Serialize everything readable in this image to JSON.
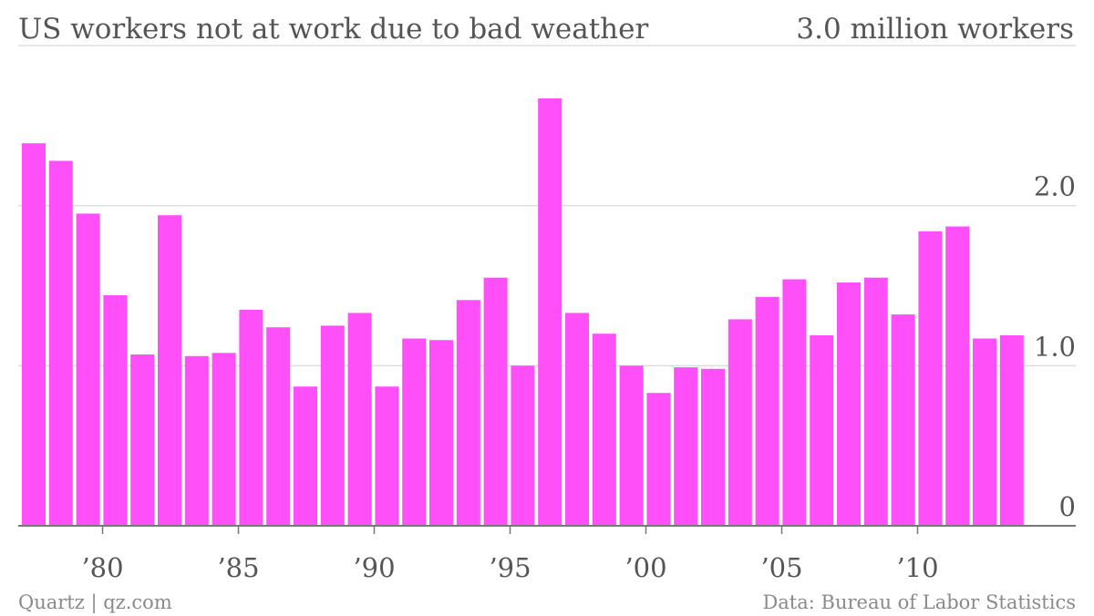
{
  "header": {
    "title": "US workers not at work due to bad weather",
    "unit_label": "3.0 million workers"
  },
  "footer": {
    "credit": "Quartz | qz.com",
    "source": "Data: Bureau of Labor Statistics"
  },
  "colors": {
    "bar": "#ff4ff8",
    "grid": "#dddddd",
    "baseline": "#777777"
  },
  "chart_data": {
    "type": "bar",
    "title": "US workers not at work due to bad weather",
    "unit": "million workers",
    "ylim": [
      0,
      3.0
    ],
    "y_ticks": [
      {
        "value": 0,
        "label": "0"
      },
      {
        "value": 1.0,
        "label": "1.0"
      },
      {
        "value": 2.0,
        "label": "2.0"
      },
      {
        "value": 3.0,
        "label": "3.0 million workers"
      }
    ],
    "x_ticks": [
      {
        "year": 1980,
        "label": "’80"
      },
      {
        "year": 1985,
        "label": "’85"
      },
      {
        "year": 1990,
        "label": "’90"
      },
      {
        "year": 1995,
        "label": "’95"
      },
      {
        "year": 2000,
        "label": "’00"
      },
      {
        "year": 2005,
        "label": "’05"
      },
      {
        "year": 2010,
        "label": "’10"
      }
    ],
    "grid": true,
    "categories": [
      1977,
      1978,
      1979,
      1980,
      1981,
      1982,
      1983,
      1984,
      1985,
      1986,
      1987,
      1988,
      1989,
      1990,
      1991,
      1992,
      1993,
      1994,
      1995,
      1996,
      1997,
      1998,
      1999,
      2000,
      2001,
      2002,
      2003,
      2004,
      2005,
      2006,
      2007,
      2008,
      2009,
      2010,
      2011,
      2012,
      2013
    ],
    "values": [
      2.39,
      2.28,
      1.95,
      1.44,
      1.07,
      1.94,
      1.06,
      1.08,
      1.35,
      1.24,
      0.87,
      1.25,
      1.33,
      0.87,
      1.17,
      1.16,
      1.41,
      1.55,
      1.0,
      2.67,
      1.33,
      1.2,
      1.0,
      0.83,
      0.99,
      0.98,
      1.29,
      1.43,
      1.54,
      1.19,
      1.52,
      1.55,
      1.32,
      1.84,
      1.87,
      1.17,
      1.19
    ]
  }
}
